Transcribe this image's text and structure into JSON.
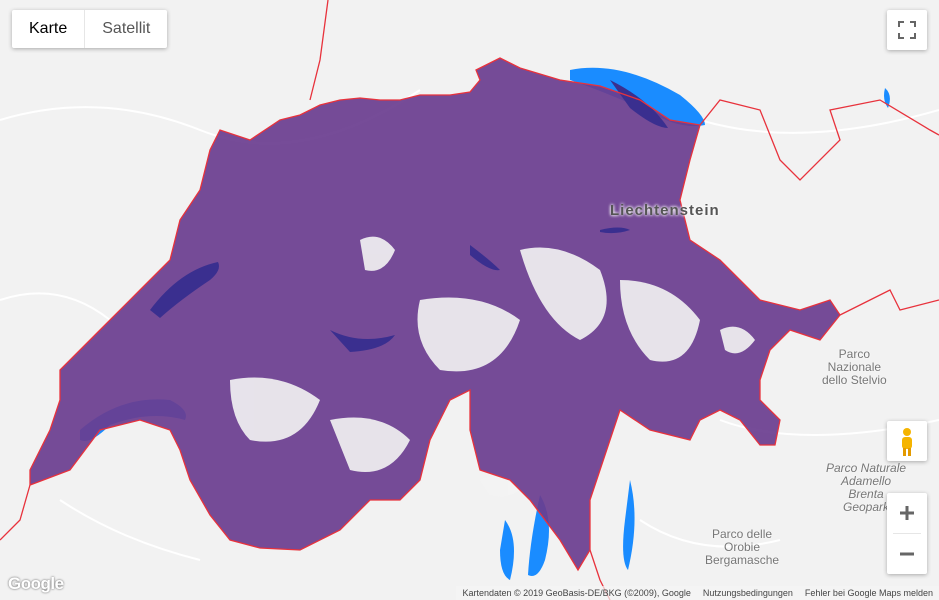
{
  "map": {
    "maptype": {
      "map_label": "Karte",
      "satellite_label": "Satellit",
      "active": "map"
    },
    "labels": {
      "liechtenstein": "Liechtenstein",
      "park_stelvio": [
        "Parco",
        "Nazionale",
        "dello Stelvio"
      ],
      "park_adamello": [
        "Parco Naturale",
        "Adamello",
        "Brenta",
        "Geopark"
      ],
      "park_orobie": [
        "Parco delle",
        "Orobie",
        "Bergamasche"
      ]
    },
    "logo": "Google",
    "footer": {
      "attribution": "Kartendaten © 2019 GeoBasis-DE/BKG (©2009), Google",
      "terms": "Nutzungsbedingungen",
      "report": "Fehler bei Google Maps melden"
    },
    "colors": {
      "coverage": "#6a3d8f",
      "water": "#1a8cff",
      "border": "#e8323c",
      "land": "#f2f2f2"
    },
    "icons": [
      "fullscreen-icon",
      "pegman-icon",
      "zoom-in-icon",
      "zoom-out-icon"
    ]
  }
}
